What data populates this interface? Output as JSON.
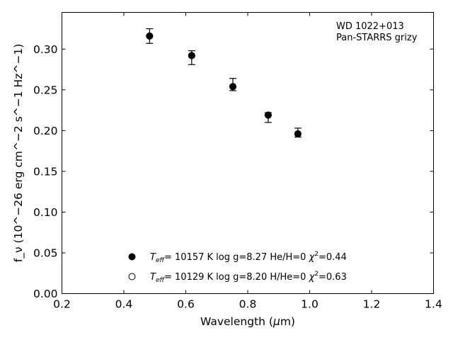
{
  "chart_data": {
    "type": "scatter",
    "xlabel_prefix": "Wavelength (",
    "xlabel_symbol": "μ",
    "xlabel_suffix": "m)",
    "ylabel": "f_ν (10^−26 erg cm^−2 s^−1 Hz^−1)",
    "xlim": [
      0.2,
      1.4
    ],
    "ylim": [
      0.0,
      0.345
    ],
    "xticks": [
      "0.2",
      "0.4",
      "0.6",
      "0.8",
      "1.0",
      "1.2",
      "1.4"
    ],
    "yticks": [
      "0.00",
      "0.05",
      "0.10",
      "0.15",
      "0.20",
      "0.25",
      "0.30"
    ],
    "annotation": [
      "WD 1022+013",
      "Pan-STARRS grizy"
    ],
    "grid": false,
    "legend_position": "bottom-center",
    "series": [
      {
        "name": "T_eff= 10157 K  log g=8.27  He/H=0  χ²=0.44",
        "marker": "filled-circle",
        "points": [
          {
            "x": 0.483,
            "y": 0.316,
            "y_lo": 0.307,
            "y_hi": 0.325
          },
          {
            "x": 0.619,
            "y": 0.292,
            "y_lo": 0.281,
            "y_hi": 0.298
          },
          {
            "x": 0.752,
            "y": 0.254,
            "y_lo": 0.249,
            "y_hi": 0.264
          },
          {
            "x": 0.866,
            "y": 0.219,
            "y_lo": 0.21,
            "y_hi": 0.222
          },
          {
            "x": 0.962,
            "y": 0.196,
            "y_lo": 0.192,
            "y_hi": 0.203
          }
        ]
      },
      {
        "name": "T_eff= 10129 K  log g=8.20  H/He=0  χ²=0.63",
        "marker": "open-circle",
        "points": [
          {
            "x": 0.483,
            "y": 0.316
          },
          {
            "x": 0.619,
            "y": 0.292
          },
          {
            "x": 0.752,
            "y": 0.254
          },
          {
            "x": 0.866,
            "y": 0.219
          },
          {
            "x": 0.962,
            "y": 0.196
          }
        ]
      }
    ],
    "legend": [
      {
        "marker": "filled-circle",
        "teff_sym": "T",
        "teff_sub": "eff",
        "text": "= 10157 K  log g=8.27  He/H=0  ",
        "chi_sym": "χ",
        "chi_sup": "2",
        "chi_val": "=0.44"
      },
      {
        "marker": "open-circle",
        "teff_sym": "T",
        "teff_sub": "eff",
        "text": "= 10129 K  log g=8.20  H/He=0  ",
        "chi_sym": "χ",
        "chi_sup": "2",
        "chi_val": "=0.63"
      }
    ],
    "colors": {
      "marker": "#000000",
      "axes": "#000000",
      "background": "#ffffff"
    }
  }
}
